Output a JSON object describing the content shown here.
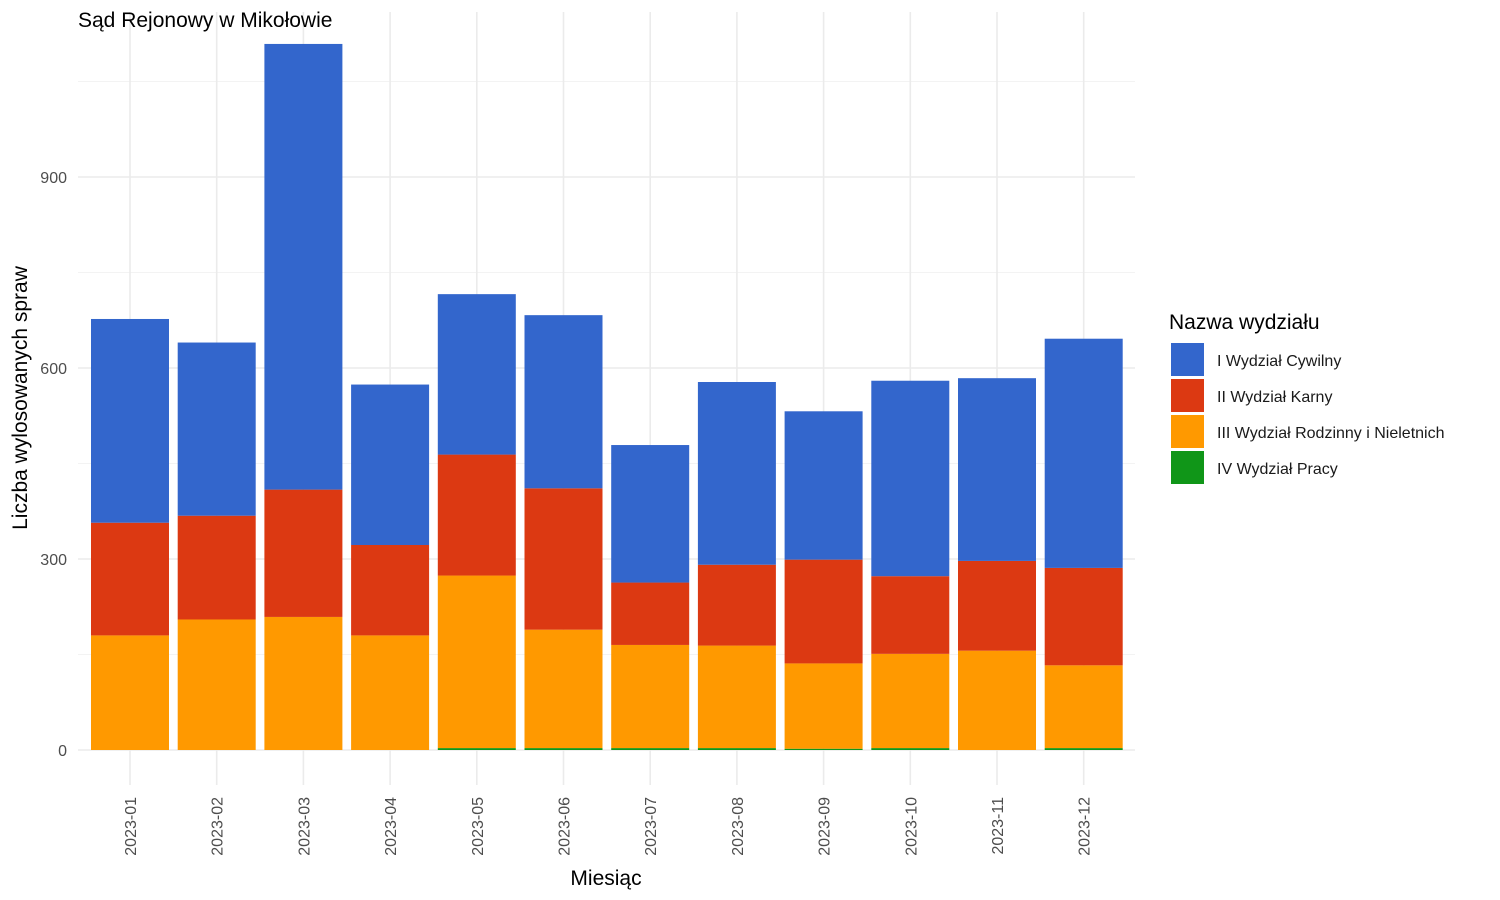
{
  "chart_data": {
    "type": "bar",
    "stacked": true,
    "title": "Sąd Rejonowy w Mikołowie",
    "xlabel": "Miesiąc",
    "ylabel": "Liczba wylosowanych spraw",
    "categories": [
      "2023-01",
      "2023-02",
      "2023-03",
      "2023-04",
      "2023-05",
      "2023-06",
      "2023-07",
      "2023-08",
      "2023-09",
      "2023-10",
      "2023-11",
      "2023-12"
    ],
    "ylim": [
      0,
      1160
    ],
    "yticks": [
      0,
      300,
      600,
      900
    ],
    "grid": true,
    "legend_title": "Nazwa wydziału",
    "legend_position": "right",
    "series": [
      {
        "name": "I Wydział Cywilny",
        "color": "#3366cc",
        "values": [
          320,
          272,
          700,
          252,
          252,
          272,
          216,
          287,
          233,
          307,
          287,
          360
        ]
      },
      {
        "name": "II Wydział Karny",
        "color": "#dc3912",
        "values": [
          177,
          163,
          200,
          142,
          190,
          222,
          98,
          127,
          163,
          122,
          141,
          153
        ]
      },
      {
        "name": "III Wydział Rodzinny i Nieletnich",
        "color": "#ff9900",
        "values": [
          180,
          205,
          209,
          180,
          271,
          186,
          162,
          161,
          134,
          148,
          156,
          130
        ]
      },
      {
        "name": "IV Wydział Pracy",
        "color": "#109618",
        "values": [
          0,
          0,
          0,
          0,
          3,
          3,
          3,
          3,
          2,
          3,
          0,
          3
        ]
      }
    ]
  }
}
